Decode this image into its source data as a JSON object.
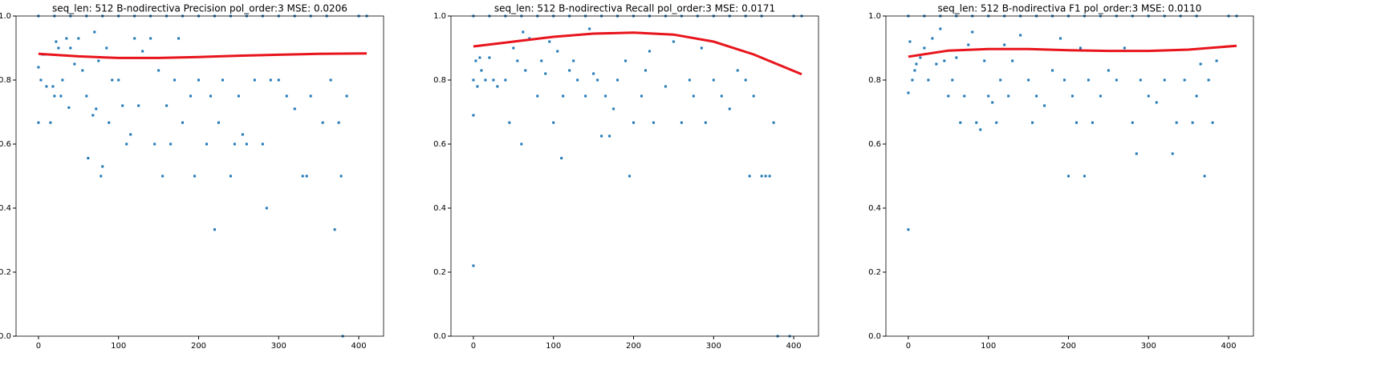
{
  "chart_data": [
    {
      "type": "scatter",
      "title": "seq_len: 512    B-nodirectiva   Precision   pol_order:3   MSE: 0.0206",
      "xlim": [
        -28,
        431
      ],
      "ylim": [
        0,
        1
      ],
      "xticks": [
        0,
        100,
        200,
        300,
        400
      ],
      "yticks": [
        {
          "value": 0,
          "label": "0.0"
        },
        0.2,
        0.4,
        0.6,
        0.8,
        {
          "value": 1,
          "label": "1.0"
        }
      ],
      "point_color": "#1f77b4",
      "fit_color": "#e8141b",
      "points": {
        "x": [
          0,
          0,
          3,
          5,
          8,
          10,
          15,
          18,
          20,
          22,
          25,
          28,
          30,
          35,
          38,
          40,
          45,
          50,
          55,
          60,
          62,
          68,
          70,
          72,
          75,
          78,
          80,
          85,
          88,
          92,
          100,
          105,
          110,
          115,
          120,
          125,
          130,
          140,
          145,
          150,
          155,
          160,
          165,
          170,
          175,
          180,
          190,
          195,
          200,
          210,
          215,
          220,
          225,
          230,
          240,
          245,
          250,
          255,
          260,
          270,
          280,
          285,
          290,
          300,
          310,
          320,
          330,
          335,
          340,
          355,
          365,
          370,
          375,
          378,
          380,
          385,
          400,
          410,
          0,
          20,
          40,
          60,
          80,
          100,
          120,
          140,
          160,
          180,
          200,
          220,
          240,
          260,
          280,
          300,
          320,
          340,
          360
        ],
        "y": [
          0.667,
          0.84,
          0.8,
          0.88,
          0.88,
          0.78,
          0.667,
          0.78,
          0.75,
          0.92,
          0.9,
          0.75,
          0.8,
          0.93,
          0.714,
          0.9,
          0.85,
          0.93,
          0.83,
          0.75,
          0.556,
          0.69,
          0.95,
          0.71,
          0.86,
          0.5,
          0.53,
          0.9,
          0.667,
          0.8,
          0.8,
          0.72,
          0.6,
          0.63,
          0.93,
          0.72,
          0.89,
          0.93,
          0.6,
          0.83,
          0.5,
          0.72,
          0.6,
          0.8,
          0.93,
          0.667,
          0.75,
          0.5,
          0.8,
          0.6,
          0.75,
          0.333,
          0.667,
          0.8,
          0.5,
          0.6,
          0.75,
          0.63,
          0.6,
          0.8,
          0.6,
          0.4,
          0.8,
          0.8,
          0.75,
          0.71,
          0.5,
          0.5,
          0.75,
          0.667,
          0.8,
          0.333,
          0.667,
          0.5,
          0,
          0.75,
          1,
          1,
          1,
          1,
          1,
          1,
          1,
          1,
          1,
          1,
          1,
          1,
          1,
          1,
          1,
          1,
          1,
          1,
          1,
          1,
          1
        ]
      },
      "fit": {
        "x": [
          0,
          50,
          100,
          150,
          200,
          250,
          300,
          350,
          410
        ],
        "y": [
          0.882,
          0.874,
          0.869,
          0.869,
          0.872,
          0.876,
          0.879,
          0.882,
          0.883
        ]
      }
    },
    {
      "type": "scatter",
      "title": "seq_len: 512    B-nodirectiva   Recall   pol_order:3   MSE: 0.0171",
      "xlim": [
        -28,
        431
      ],
      "ylim": [
        0,
        1
      ],
      "xticks": [
        0,
        100,
        200,
        300,
        400
      ],
      "yticks": [
        {
          "value": 0,
          "label": "0.0"
        },
        0.2,
        0.4,
        0.6,
        0.8,
        {
          "value": 1,
          "label": "1.0"
        }
      ],
      "point_color": "#1f77b4",
      "fit_color": "#e8141b",
      "points": {
        "x": [
          0,
          0,
          0,
          3,
          5,
          8,
          10,
          15,
          20,
          25,
          30,
          40,
          45,
          50,
          55,
          60,
          62,
          65,
          70,
          80,
          85,
          90,
          95,
          100,
          105,
          110,
          112,
          120,
          125,
          130,
          140,
          145,
          150,
          155,
          160,
          165,
          170,
          175,
          180,
          190,
          195,
          200,
          210,
          215,
          220,
          225,
          240,
          250,
          260,
          270,
          275,
          285,
          290,
          300,
          310,
          320,
          330,
          340,
          345,
          350,
          360,
          365,
          370,
          375,
          380,
          395,
          400,
          410,
          0,
          20,
          40,
          60,
          80,
          100,
          120,
          140,
          160,
          180,
          200,
          220,
          240,
          260,
          280,
          300,
          320,
          340,
          360
        ],
        "y": [
          0.22,
          0.69,
          0.8,
          0.86,
          0.78,
          0.87,
          0.83,
          0.8,
          0.87,
          0.8,
          0.78,
          0.8,
          0.667,
          0.9,
          0.86,
          0.6,
          0.95,
          0.83,
          0.93,
          0.75,
          0.86,
          0.82,
          0.92,
          0.667,
          0.89,
          0.556,
          0.75,
          0.83,
          0.86,
          0.8,
          0.75,
          0.96,
          0.82,
          0.8,
          0.625,
          0.75,
          0.625,
          0.71,
          0.8,
          0.86,
          0.5,
          0.667,
          0.75,
          0.83,
          0.89,
          0.667,
          0.78,
          0.92,
          0.667,
          0.8,
          0.75,
          0.9,
          0.667,
          0.8,
          0.75,
          0.71,
          0.83,
          0.8,
          0.5,
          0.75,
          0.5,
          0.5,
          0.5,
          0.667,
          0,
          0,
          1,
          1,
          1,
          1,
          1,
          1,
          1,
          1,
          1,
          1,
          1,
          1,
          1,
          1,
          1,
          1,
          1,
          1,
          1,
          1,
          1
        ]
      },
      "fit": {
        "x": [
          0,
          50,
          100,
          150,
          200,
          250,
          300,
          350,
          410
        ],
        "y": [
          0.905,
          0.92,
          0.935,
          0.945,
          0.948,
          0.942,
          0.92,
          0.88,
          0.818
        ]
      }
    },
    {
      "type": "scatter",
      "title": "seq_len: 512    B-nodirectiva   F1   pol_order:3   MSE: 0.0110",
      "xlim": [
        -28,
        431
      ],
      "ylim": [
        0,
        1
      ],
      "xticks": [
        0,
        100,
        200,
        300,
        400
      ],
      "yticks": [
        {
          "value": 0,
          "label": "0.0"
        },
        0.2,
        0.4,
        0.6,
        0.8,
        {
          "value": 1,
          "label": "1.0"
        }
      ],
      "point_color": "#1f77b4",
      "fit_color": "#e8141b",
      "points": {
        "x": [
          0,
          0,
          2,
          5,
          8,
          10,
          15,
          20,
          25,
          30,
          35,
          40,
          45,
          50,
          55,
          60,
          65,
          70,
          75,
          80,
          85,
          90,
          95,
          100,
          105,
          110,
          115,
          120,
          125,
          130,
          140,
          150,
          155,
          160,
          170,
          180,
          190,
          195,
          200,
          205,
          210,
          215,
          220,
          225,
          230,
          240,
          250,
          260,
          270,
          280,
          285,
          290,
          300,
          310,
          320,
          330,
          335,
          345,
          355,
          360,
          365,
          370,
          375,
          380,
          385,
          400,
          410,
          0,
          20,
          40,
          60,
          80,
          100,
          120,
          140,
          160,
          180,
          200,
          220,
          240,
          260,
          280,
          300,
          320,
          340,
          360
        ],
        "y": [
          0.333,
          0.76,
          0.92,
          0.8,
          0.83,
          0.85,
          0.87,
          0.9,
          0.8,
          0.93,
          0.85,
          0.96,
          0.86,
          0.75,
          0.8,
          0.87,
          0.667,
          0.75,
          0.91,
          0.95,
          0.667,
          0.645,
          0.86,
          0.75,
          0.73,
          0.667,
          0.8,
          0.91,
          0.75,
          0.86,
          0.94,
          0.8,
          0.667,
          0.75,
          0.72,
          0.83,
          0.93,
          0.8,
          0.5,
          0.75,
          0.667,
          0.9,
          0.5,
          0.8,
          0.667,
          0.75,
          0.83,
          0.8,
          0.9,
          0.667,
          0.57,
          0.8,
          0.75,
          0.73,
          0.8,
          0.57,
          0.667,
          0.8,
          0.667,
          0.75,
          0.85,
          0.5,
          0.8,
          0.667,
          0.86,
          1,
          1,
          1,
          1,
          1,
          1,
          1,
          1,
          1,
          1,
          1,
          1,
          1,
          1,
          1,
          1,
          1,
          1,
          1,
          1,
          1
        ]
      },
      "fit": {
        "x": [
          0,
          50,
          100,
          150,
          200,
          250,
          300,
          350,
          410
        ],
        "y": [
          0.873,
          0.892,
          0.897,
          0.897,
          0.893,
          0.891,
          0.891,
          0.895,
          0.907
        ]
      }
    }
  ]
}
